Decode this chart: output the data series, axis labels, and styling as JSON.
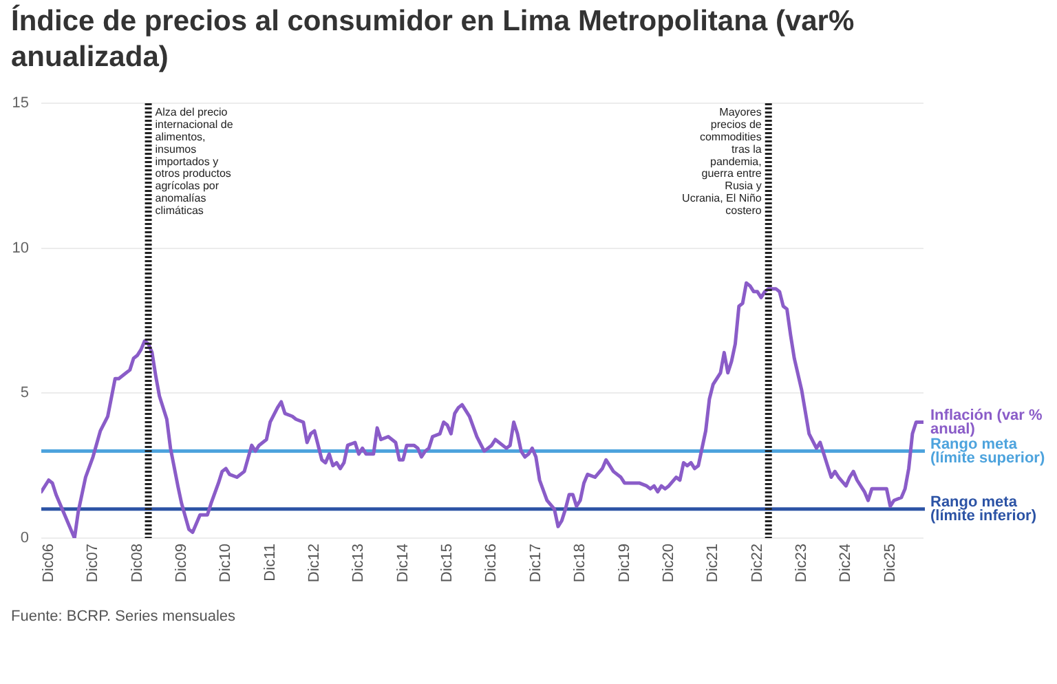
{
  "chart_data": {
    "type": "line",
    "title": "Índice de precios al consumidor en Lima Metropolitana (var% anualizada)",
    "annotations": [
      "Fuente: BCRP. Series mensuales"
    ],
    "series": [
      {
        "name": "Inflación (var % anual)",
        "color": "#8a5cc8",
        "x": [
          "2006-10",
          "2006-12",
          "2007-01",
          "2007-02",
          "2007-04",
          "2007-06",
          "2007-07",
          "2007-08",
          "2007-09",
          "2007-10",
          "2007-12",
          "2008-02",
          "2008-04",
          "2008-06",
          "2008-07",
          "2008-09",
          "2008-10",
          "2008-11",
          "2008-12",
          "2009-01",
          "2009-02",
          "2009-03",
          "2009-04",
          "2009-05",
          "2009-06",
          "2009-08",
          "2009-09",
          "2009-11",
          "2009-12",
          "2010-02",
          "2010-03",
          "2010-05",
          "2010-07",
          "2010-08",
          "2010-10",
          "2010-11",
          "2010-12",
          "2011-01",
          "2011-03",
          "2011-05",
          "2011-07",
          "2011-08",
          "2011-09",
          "2011-10",
          "2011-11",
          "2011-12",
          "2012-02",
          "2012-03",
          "2012-04",
          "2012-06",
          "2012-07",
          "2012-09",
          "2012-10",
          "2012-11",
          "2012-12",
          "2013-01",
          "2013-02",
          "2013-03",
          "2013-04",
          "2013-05",
          "2013-06",
          "2013-07",
          "2013-08",
          "2013-09",
          "2013-11",
          "2013-12",
          "2014-01",
          "2014-02",
          "2014-04",
          "2014-05",
          "2014-06",
          "2014-08",
          "2014-10",
          "2014-11",
          "2014-12",
          "2015-01",
          "2015-03",
          "2015-04",
          "2015-05",
          "2015-06",
          "2015-07",
          "2015-08",
          "2015-10",
          "2015-11",
          "2015-12",
          "2016-01",
          "2016-02",
          "2016-03",
          "2016-04",
          "2016-06",
          "2016-08",
          "2016-10",
          "2016-12",
          "2017-01",
          "2017-04",
          "2017-05",
          "2017-06",
          "2017-07",
          "2017-08",
          "2017-09",
          "2017-10",
          "2017-11",
          "2017-12",
          "2018-01",
          "2018-03",
          "2018-05",
          "2018-06",
          "2018-07",
          "2018-08",
          "2018-09",
          "2018-10",
          "2018-11",
          "2018-12",
          "2019-01",
          "2019-02",
          "2019-04",
          "2019-06",
          "2019-07",
          "2019-08",
          "2019-09",
          "2019-11",
          "2019-12",
          "2020-02",
          "2020-04",
          "2020-06",
          "2020-07",
          "2020-08",
          "2020-09",
          "2020-10",
          "2020-11",
          "2020-12",
          "2021-02",
          "2021-03",
          "2021-04",
          "2021-05",
          "2021-06",
          "2021-07",
          "2021-08",
          "2021-09",
          "2021-10",
          "2021-11",
          "2021-12",
          "2022-02",
          "2022-03",
          "2022-04",
          "2022-05",
          "2022-06",
          "2022-07",
          "2022-08",
          "2022-09",
          "2022-10",
          "2022-11",
          "2022-12",
          "2023-01",
          "2023-02",
          "2023-03",
          "2023-05",
          "2023-06",
          "2023-07",
          "2023-08",
          "2023-09",
          "2023-10",
          "2023-12",
          "2024-02",
          "2024-04",
          "2024-05",
          "2024-06",
          "2024-07",
          "2024-08",
          "2024-09",
          "2024-10",
          "2024-12",
          "2025-01",
          "2025-02",
          "2025-03",
          "2025-05",
          "2025-06",
          "2025-07",
          "2025-08",
          "2025-10",
          "2025-11",
          "2025-12",
          "2026-01",
          "2026-03",
          "2026-04",
          "2026-05",
          "2026-06",
          "2026-07",
          "2026-09"
        ],
        "values": [
          1.6,
          2.0,
          1.9,
          1.5,
          0.9,
          0.3,
          0.0,
          0.9,
          1.5,
          2.1,
          2.8,
          3.7,
          4.2,
          5.5,
          5.5,
          5.7,
          5.8,
          6.2,
          6.3,
          6.5,
          6.8,
          6.7,
          6.4,
          5.6,
          4.9,
          4.1,
          3.1,
          1.8,
          1.2,
          0.3,
          0.2,
          0.8,
          0.8,
          1.2,
          1.9,
          2.3,
          2.4,
          2.2,
          2.1,
          2.3,
          3.2,
          3.0,
          3.2,
          3.3,
          3.4,
          4.0,
          4.5,
          4.7,
          4.3,
          4.2,
          4.1,
          4.0,
          3.3,
          3.6,
          3.7,
          3.2,
          2.7,
          2.6,
          2.9,
          2.5,
          2.6,
          2.4,
          2.6,
          3.2,
          3.3,
          2.9,
          3.1,
          2.9,
          2.9,
          3.8,
          3.4,
          3.5,
          3.3,
          2.7,
          2.7,
          3.2,
          3.2,
          3.1,
          2.8,
          3.0,
          3.1,
          3.5,
          3.6,
          4.0,
          3.9,
          3.6,
          4.3,
          4.5,
          4.6,
          4.2,
          3.5,
          3.0,
          3.2,
          3.4,
          3.1,
          3.2,
          4.0,
          3.6,
          3.0,
          2.8,
          2.9,
          3.1,
          2.8,
          2.0,
          1.3,
          1.0,
          0.4,
          0.6,
          1.0,
          1.5,
          1.5,
          1.1,
          1.3,
          1.9,
          2.2,
          2.1,
          2.4,
          2.7,
          2.5,
          2.3,
          2.1,
          1.9,
          1.9,
          1.9,
          1.8,
          1.7,
          1.8,
          1.6,
          1.8,
          1.7,
          1.8,
          2.1,
          2.0,
          2.6,
          2.5,
          2.6,
          2.4,
          2.5,
          3.1,
          3.7,
          4.8,
          5.3,
          5.7,
          6.4,
          5.7,
          6.1,
          6.7,
          8.0,
          8.1,
          8.8,
          8.7,
          8.5,
          8.5,
          8.3,
          8.5,
          8.6,
          8.6,
          8.5,
          8.0,
          7.9,
          7.0,
          6.2,
          5.1,
          3.6,
          3.1,
          3.3,
          2.9,
          2.5,
          2.1,
          2.3,
          2.1,
          1.8,
          2.1,
          2.3,
          2.0,
          1.6,
          1.3,
          1.7,
          1.7,
          1.7,
          1.7,
          1.1,
          1.3,
          1.4,
          1.7,
          2.4,
          3.6,
          4.0,
          4.0
        ]
      }
    ],
    "xlim": [
      "2006-10",
      "2026-09"
    ],
    "xticks": [
      {
        "value": "2006-12",
        "label": "Dic06"
      },
      {
        "value": "2007-12",
        "label": "Dic07"
      },
      {
        "value": "2008-12",
        "label": "Dic08"
      },
      {
        "value": "2009-12",
        "label": "Dic09"
      },
      {
        "value": "2010-12",
        "label": "Dic10"
      },
      {
        "value": "2011-12",
        "label": "Dic11"
      },
      {
        "value": "2012-12",
        "label": "Dic12"
      },
      {
        "value": "2013-12",
        "label": "Dic13"
      },
      {
        "value": "2014-12",
        "label": "Dic14"
      },
      {
        "value": "2015-12",
        "label": "Dic15"
      },
      {
        "value": "2016-12",
        "label": "Dic16"
      },
      {
        "value": "2017-12",
        "label": "Dic17"
      },
      {
        "value": "2018-12",
        "label": "Dic18"
      },
      {
        "value": "2019-12",
        "label": "Dic19"
      },
      {
        "value": "2020-12",
        "label": "Dic20"
      },
      {
        "value": "2021-12",
        "label": "Dic21"
      },
      {
        "value": "2022-12",
        "label": "Dic22"
      },
      {
        "value": "2023-12",
        "label": "Dic23"
      },
      {
        "value": "2024-12",
        "label": "Dic24"
      },
      {
        "value": "2025-12",
        "label": "Dic25"
      }
    ],
    "ylim": [
      0,
      15
    ],
    "yticks": [
      0,
      5,
      10,
      15
    ],
    "grid": "y",
    "legend": false,
    "marker": "none",
    "ref_lines": [
      {
        "axis": "y",
        "value": 3,
        "label": "Rango meta (límite superior)",
        "color": "#4da3dd"
      },
      {
        "axis": "y",
        "value": 1,
        "label": "Rango meta (límite inferior)",
        "color": "#2c53a5"
      },
      {
        "axis": "x",
        "value": "2009-03",
        "label": "Alza del precio internacional de alimentos, insumos importados y otros productos agrícolas por anomalías climáticas",
        "color": "#222222",
        "line_style": "dashed"
      },
      {
        "axis": "x",
        "value": "2023-03",
        "label": "Mayores precios de commodities tras la pandemia, guerra entre Rusia y Ucrania, El Niño costero",
        "color": "#222222",
        "line_style": "dashed"
      }
    ]
  }
}
